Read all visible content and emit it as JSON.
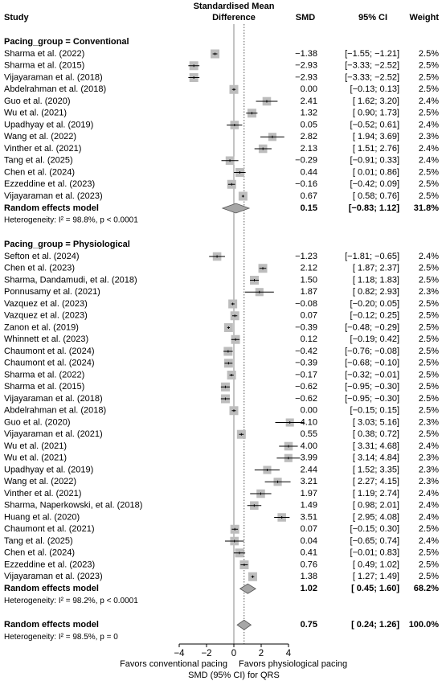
{
  "chart_data": {
    "type": "forest",
    "columns": {
      "study": "Study",
      "effect": [
        "Standardised Mean",
        "Difference"
      ],
      "smd": "SMD",
      "ci": "95% CI",
      "weight": "Weight"
    },
    "groups": [
      {
        "label": "Pacing_group = Conventional",
        "studies": [
          {
            "name": "Sharma et al. (2022)",
            "smd": -1.38,
            "lo": -1.55,
            "hi": -1.21,
            "w": 2.5,
            "smd_label": "−1.38",
            "ci_label": "[−1.55; −1.21]",
            "w_label": "2.5%"
          },
          {
            "name": "Sharma et al. (2015)",
            "smd": -2.93,
            "lo": -3.33,
            "hi": -2.52,
            "w": 2.5,
            "smd_label": "−2.93",
            "ci_label": "[−3.33; −2.52]",
            "w_label": "2.5%"
          },
          {
            "name": "Vijayaraman et al. (2018)",
            "smd": -2.93,
            "lo": -3.33,
            "hi": -2.52,
            "w": 2.5,
            "smd_label": "−2.93",
            "ci_label": "[−3.33; −2.52]",
            "w_label": "2.5%"
          },
          {
            "name": "Abdelrahman et al. (2018)",
            "smd": 0.0,
            "lo": -0.13,
            "hi": 0.13,
            "w": 2.5,
            "smd_label": "0.00",
            "ci_label": "[−0.13; 0.13]",
            "w_label": "2.5%"
          },
          {
            "name": "Guo et al. (2020)",
            "smd": 2.41,
            "lo": 1.62,
            "hi": 3.2,
            "w": 2.4,
            "smd_label": "2.41",
            "ci_label": "[ 1.62; 3.20]",
            "w_label": "2.4%"
          },
          {
            "name": "Wu et al. (2021)",
            "smd": 1.32,
            "lo": 0.9,
            "hi": 1.73,
            "w": 2.5,
            "smd_label": "1.32",
            "ci_label": "[ 0.90; 1.73]",
            "w_label": "2.5%"
          },
          {
            "name": "Upadhyay et al. (2019)",
            "smd": 0.05,
            "lo": -0.52,
            "hi": 0.61,
            "w": 2.4,
            "smd_label": "0.05",
            "ci_label": "[−0.52; 0.61]",
            "w_label": "2.4%"
          },
          {
            "name": "Wang et al. (2022)",
            "smd": 2.82,
            "lo": 1.94,
            "hi": 3.69,
            "w": 2.3,
            "smd_label": "2.82",
            "ci_label": "[ 1.94; 3.69]",
            "w_label": "2.3%"
          },
          {
            "name": "Vinther et al. (2021)",
            "smd": 2.13,
            "lo": 1.51,
            "hi": 2.76,
            "w": 2.4,
            "smd_label": "2.13",
            "ci_label": "[ 1.51; 2.76]",
            "w_label": "2.4%"
          },
          {
            "name": "Tang et al. (2025)",
            "smd": -0.29,
            "lo": -0.91,
            "hi": 0.33,
            "w": 2.4,
            "smd_label": "−0.29",
            "ci_label": "[−0.91; 0.33]",
            "w_label": "2.4%"
          },
          {
            "name": "Chen et al. (2024)",
            "smd": 0.44,
            "lo": 0.01,
            "hi": 0.86,
            "w": 2.5,
            "smd_label": "0.44",
            "ci_label": "[ 0.01; 0.86]",
            "w_label": "2.5%"
          },
          {
            "name": "Ezzeddine et al. (2023)",
            "smd": -0.16,
            "lo": -0.42,
            "hi": 0.09,
            "w": 2.5,
            "smd_label": "−0.16",
            "ci_label": "[−0.42; 0.09]",
            "w_label": "2.5%"
          },
          {
            "name": "Vijayaraman et al. (2023)",
            "smd": 0.67,
            "lo": 0.58,
            "hi": 0.76,
            "w": 2.5,
            "smd_label": "0.67",
            "ci_label": "[ 0.58; 0.76]",
            "w_label": "2.5%"
          }
        ],
        "pooled": {
          "name": "Random effects model",
          "smd": 0.15,
          "lo": -0.83,
          "hi": 1.12,
          "w": 31.8,
          "smd_label": "0.15",
          "ci_label": "[−0.83; 1.12]",
          "w_label": "31.8%"
        },
        "heterogeneity": "Heterogeneity: I² = 98.8%, p < 0.0001"
      },
      {
        "label": "Pacing_group = Physiological",
        "studies": [
          {
            "name": "Sefton et al. (2024)",
            "smd": -1.23,
            "lo": -1.81,
            "hi": -0.65,
            "w": 2.4,
            "smd_label": "−1.23",
            "ci_label": "[−1.81; −0.65]",
            "w_label": "2.4%"
          },
          {
            "name": "Chen et al. (2023)",
            "smd": 2.12,
            "lo": 1.87,
            "hi": 2.37,
            "w": 2.5,
            "smd_label": "2.12",
            "ci_label": "[ 1.87; 2.37]",
            "w_label": "2.5%"
          },
          {
            "name": "Sharma, Dandamudi, et al. (2018)",
            "smd": 1.5,
            "lo": 1.18,
            "hi": 1.83,
            "w": 2.5,
            "smd_label": "1.50",
            "ci_label": "[ 1.18; 1.83]",
            "w_label": "2.5%"
          },
          {
            "name": "Ponnusamy et al. (2021)",
            "smd": 1.87,
            "lo": 0.82,
            "hi": 2.93,
            "w": 2.3,
            "smd_label": "1.87",
            "ci_label": "[ 0.82; 2.93]",
            "w_label": "2.3%"
          },
          {
            "name": "Vazquez et al. (2023)",
            "smd": -0.08,
            "lo": -0.2,
            "hi": 0.05,
            "w": 2.5,
            "smd_label": "−0.08",
            "ci_label": "[−0.20; 0.05]",
            "w_label": "2.5%"
          },
          {
            "name": "Vazquez et al. (2023)",
            "smd": 0.07,
            "lo": -0.12,
            "hi": 0.25,
            "w": 2.5,
            "smd_label": "0.07",
            "ci_label": "[−0.12; 0.25]",
            "w_label": "2.5%"
          },
          {
            "name": "Zanon et al. (2019)",
            "smd": -0.39,
            "lo": -0.48,
            "hi": -0.29,
            "w": 2.5,
            "smd_label": "−0.39",
            "ci_label": "[−0.48; −0.29]",
            "w_label": "2.5%"
          },
          {
            "name": "Whinnett et al. (2023)",
            "smd": 0.12,
            "lo": -0.19,
            "hi": 0.42,
            "w": 2.5,
            "smd_label": "0.12",
            "ci_label": "[−0.19; 0.42]",
            "w_label": "2.5%"
          },
          {
            "name": "Chaumont et al. (2024)",
            "smd": -0.42,
            "lo": -0.76,
            "hi": -0.08,
            "w": 2.5,
            "smd_label": "−0.42",
            "ci_label": "[−0.76; −0.08]",
            "w_label": "2.5%"
          },
          {
            "name": "Chaumont et al. (2024)",
            "smd": -0.39,
            "lo": -0.68,
            "hi": -0.1,
            "w": 2.5,
            "smd_label": "−0.39",
            "ci_label": "[−0.68; −0.10]",
            "w_label": "2.5%"
          },
          {
            "name": "Sharma et al. (2022)",
            "smd": -0.17,
            "lo": -0.32,
            "hi": -0.01,
            "w": 2.5,
            "smd_label": "−0.17",
            "ci_label": "[−0.32; −0.01]",
            "w_label": "2.5%"
          },
          {
            "name": "Sharma et al. (2015)",
            "smd": -0.62,
            "lo": -0.95,
            "hi": -0.3,
            "w": 2.5,
            "smd_label": "−0.62",
            "ci_label": "[−0.95; −0.30]",
            "w_label": "2.5%"
          },
          {
            "name": "Vijayaraman et al. (2018)",
            "smd": -0.62,
            "lo": -0.95,
            "hi": -0.3,
            "w": 2.5,
            "smd_label": "−0.62",
            "ci_label": "[−0.95; −0.30]",
            "w_label": "2.5%"
          },
          {
            "name": "Abdelrahman et al. (2018)",
            "smd": 0.0,
            "lo": -0.15,
            "hi": 0.15,
            "w": 2.5,
            "smd_label": "0.00",
            "ci_label": "[−0.15; 0.15]",
            "w_label": "2.5%"
          },
          {
            "name": "Guo et al. (2020)",
            "smd": 4.1,
            "lo": 3.03,
            "hi": 5.16,
            "w": 2.3,
            "smd_label": "4.10",
            "ci_label": "[ 3.03; 5.16]",
            "w_label": "2.3%"
          },
          {
            "name": "Vijayaraman et al. (2021)",
            "smd": 0.55,
            "lo": 0.38,
            "hi": 0.72,
            "w": 2.5,
            "smd_label": "0.55",
            "ci_label": "[ 0.38; 0.72]",
            "w_label": "2.5%"
          },
          {
            "name": "Wu et al. (2021)",
            "smd": 4.0,
            "lo": 3.31,
            "hi": 4.68,
            "w": 2.4,
            "smd_label": "4.00",
            "ci_label": "[ 3.31; 4.68]",
            "w_label": "2.4%"
          },
          {
            "name": "Wu et al. (2021)",
            "smd": 3.99,
            "lo": 3.14,
            "hi": 4.84,
            "w": 2.3,
            "smd_label": "3.99",
            "ci_label": "[ 3.14; 4.84]",
            "w_label": "2.3%"
          },
          {
            "name": "Upadhyay et al. (2019)",
            "smd": 2.44,
            "lo": 1.52,
            "hi": 3.35,
            "w": 2.3,
            "smd_label": "2.44",
            "ci_label": "[ 1.52; 3.35]",
            "w_label": "2.3%"
          },
          {
            "name": "Wang et al. (2022)",
            "smd": 3.21,
            "lo": 2.27,
            "hi": 4.15,
            "w": 2.3,
            "smd_label": "3.21",
            "ci_label": "[ 2.27; 4.15]",
            "w_label": "2.3%"
          },
          {
            "name": "Vinther et al. (2021)",
            "smd": 1.97,
            "lo": 1.19,
            "hi": 2.74,
            "w": 2.4,
            "smd_label": "1.97",
            "ci_label": "[ 1.19; 2.74]",
            "w_label": "2.4%"
          },
          {
            "name": "Sharma, Naperkowski, et al. (2018)",
            "smd": 1.49,
            "lo": 0.98,
            "hi": 2.01,
            "w": 2.4,
            "smd_label": "1.49",
            "ci_label": "[ 0.98; 2.01]",
            "w_label": "2.4%"
          },
          {
            "name": "Huang et al. (2020)",
            "smd": 3.51,
            "lo": 2.95,
            "hi": 4.08,
            "w": 2.4,
            "smd_label": "3.51",
            "ci_label": "[ 2.95; 4.08]",
            "w_label": "2.4%"
          },
          {
            "name": "Chaumont et al. (2021)",
            "smd": 0.07,
            "lo": -0.15,
            "hi": 0.3,
            "w": 2.5,
            "smd_label": "0.07",
            "ci_label": "[−0.15; 0.30]",
            "w_label": "2.5%"
          },
          {
            "name": "Tang et al. (2025)",
            "smd": 0.04,
            "lo": -0.65,
            "hi": 0.74,
            "w": 2.4,
            "smd_label": "0.04",
            "ci_label": "[−0.65; 0.74]",
            "w_label": "2.4%"
          },
          {
            "name": "Chen et al. (2024)",
            "smd": 0.41,
            "lo": -0.01,
            "hi": 0.83,
            "w": 2.5,
            "smd_label": "0.41",
            "ci_label": "[−0.01; 0.83]",
            "w_label": "2.5%"
          },
          {
            "name": "Ezzeddine et al. (2023)",
            "smd": 0.76,
            "lo": 0.49,
            "hi": 1.02,
            "w": 2.5,
            "smd_label": "0.76",
            "ci_label": "[ 0.49; 1.02]",
            "w_label": "2.5%"
          },
          {
            "name": "Vijayaraman et al. (2023)",
            "smd": 1.38,
            "lo": 1.27,
            "hi": 1.49,
            "w": 2.5,
            "smd_label": "1.38",
            "ci_label": "[ 1.27; 1.49]",
            "w_label": "2.5%"
          }
        ],
        "pooled": {
          "name": "Random effects model",
          "smd": 1.02,
          "lo": 0.45,
          "hi": 1.6,
          "w": 68.2,
          "smd_label": "1.02",
          "ci_label": "[ 0.45; 1.60]",
          "w_label": "68.2%"
        },
        "heterogeneity": "Heterogeneity: I² = 98.2%, p < 0.0001"
      }
    ],
    "overall": {
      "name": "Random effects model",
      "smd": 0.75,
      "lo": 0.24,
      "hi": 1.26,
      "w": 100.0,
      "smd_label": "0.75",
      "ci_label": "[ 0.24; 1.26]",
      "w_label": "100.0%"
    },
    "overall_heterogeneity": "Heterogeneity: I² = 98.5%, p = 0",
    "xlim": [
      -4,
      4
    ],
    "xticks": [
      {
        "value": -4,
        "label": "−4"
      },
      {
        "value": -2,
        "label": "−2"
      },
      0,
      2,
      4
    ],
    "favors_left": "Favors conventional pacing",
    "favors_right": "Favors physiological pacing",
    "xlabel": "SMD (95% CI) for QRS",
    "box_color": "#bdbdbd",
    "diamond_color": "#a6a6a6"
  }
}
